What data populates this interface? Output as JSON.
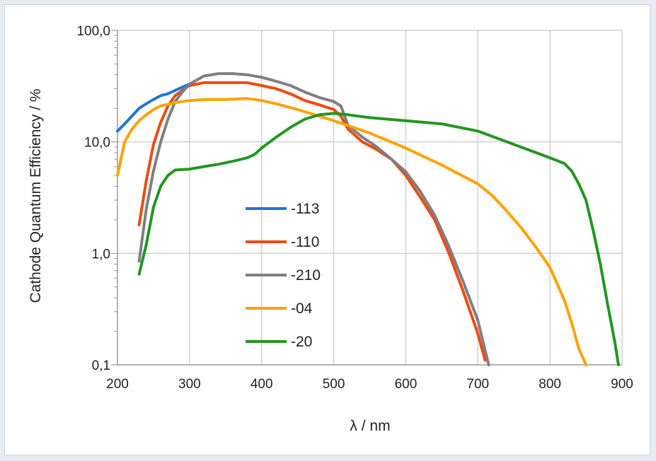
{
  "chart_data": {
    "type": "line",
    "xlabel": "λ / nm",
    "ylabel": "Cathode Quantum Efficiency / %",
    "xlim": [
      200,
      900
    ],
    "ylim": [
      0.1,
      100
    ],
    "yscale": "log",
    "grid": true,
    "legend": "center-left",
    "x_ticks": [
      "200",
      "300",
      "400",
      "500",
      "600",
      "700",
      "800",
      "900"
    ],
    "y_ticks": [
      {
        "value": 0.1,
        "label": "0,1"
      },
      {
        "value": 1,
        "label": "1,0"
      },
      {
        "value": 10,
        "label": "10,0"
      },
      {
        "value": 100,
        "label": "100,0"
      }
    ],
    "series": [
      {
        "name": "-113",
        "color": "#1f77d4",
        "x": [
          200,
          210,
          220,
          230,
          240,
          250,
          260,
          270,
          280,
          290,
          300
        ],
        "y": [
          12.5,
          14.5,
          17,
          20,
          22,
          24,
          26,
          27,
          29,
          31,
          33
        ]
      },
      {
        "name": "-110",
        "color": "#ee4b12",
        "x": [
          230,
          240,
          250,
          260,
          270,
          280,
          290,
          300,
          320,
          350,
          380,
          400,
          420,
          440,
          460,
          480,
          500,
          510,
          520,
          540,
          560,
          580,
          600,
          620,
          640,
          660,
          680,
          700,
          710
        ],
        "y": [
          1.8,
          4.5,
          9.5,
          15,
          21,
          26,
          29,
          32,
          34,
          34,
          34,
          32,
          30,
          27,
          23.5,
          21.5,
          19.5,
          17,
          13,
          10,
          8.5,
          7,
          5,
          3.2,
          2.0,
          1.0,
          0.45,
          0.19,
          0.11
        ]
      },
      {
        "name": "-210",
        "color": "#7f7f7f",
        "x": [
          230,
          240,
          250,
          260,
          270,
          280,
          290,
          300,
          320,
          340,
          360,
          380,
          400,
          420,
          440,
          460,
          480,
          500,
          510,
          520,
          540,
          560,
          580,
          600,
          620,
          640,
          660,
          680,
          700,
          715
        ],
        "y": [
          0.85,
          2.5,
          5.5,
          10,
          16,
          23,
          28,
          33,
          39,
          41,
          41,
          40,
          38,
          35,
          32,
          28,
          25,
          23,
          21,
          14,
          11,
          9,
          7,
          5.4,
          3.6,
          2.2,
          1.15,
          0.55,
          0.25,
          0.1
        ]
      },
      {
        "name": "-04",
        "color": "#ffa200",
        "x": [
          200,
          210,
          220,
          230,
          240,
          250,
          260,
          280,
          300,
          320,
          350,
          380,
          400,
          420,
          450,
          480,
          500,
          520,
          550,
          600,
          650,
          700,
          720,
          740,
          760,
          780,
          800,
          820,
          830,
          840,
          850
        ],
        "y": [
          5,
          10,
          13,
          15.5,
          17.5,
          19.5,
          21,
          22.5,
          23.5,
          24,
          24,
          24.5,
          23.5,
          22,
          19.5,
          17,
          15.5,
          14,
          12,
          8.8,
          6.2,
          4.2,
          3.3,
          2.4,
          1.7,
          1.15,
          0.75,
          0.38,
          0.24,
          0.14,
          0.1
        ]
      },
      {
        "name": "-20",
        "color": "#229622",
        "x": [
          230,
          240,
          250,
          260,
          270,
          280,
          300,
          320,
          340,
          360,
          380,
          390,
          400,
          420,
          440,
          460,
          480,
          500,
          520,
          550,
          600,
          650,
          700,
          750,
          800,
          820,
          830,
          840,
          850,
          860,
          870,
          880,
          890,
          895
        ],
        "y": [
          0.65,
          1.2,
          2.6,
          4.0,
          5.0,
          5.6,
          5.7,
          6.0,
          6.3,
          6.7,
          7.2,
          7.7,
          8.8,
          11,
          13.5,
          16,
          17.5,
          18,
          17.5,
          16.5,
          15.5,
          14.5,
          12.5,
          9.5,
          7.2,
          6.4,
          5.5,
          4.2,
          3.0,
          1.6,
          0.8,
          0.35,
          0.16,
          0.1
        ]
      }
    ]
  }
}
